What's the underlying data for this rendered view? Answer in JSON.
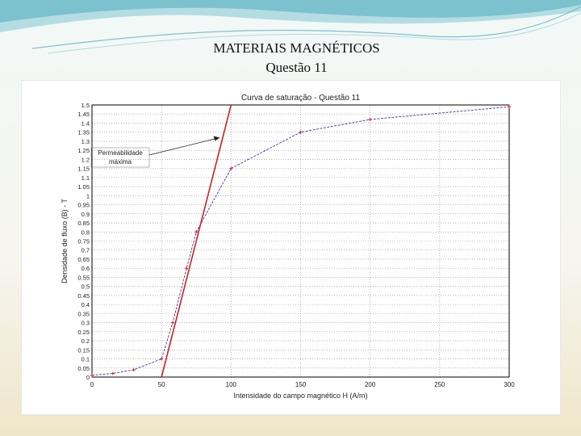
{
  "slide": {
    "title": "MATERIAIS MAGNÉTICOS",
    "subtitle": "Questão 11"
  },
  "colors": {
    "curve": "#3a3aa8",
    "permeability_line": "#cc2222",
    "grid": "#888888"
  },
  "chart_data": {
    "type": "line",
    "title": "Curva de saturação - Questão 11",
    "xlabel": "Intensidade do campo magnético H (A/m)",
    "ylabel": "Densidade de fluxo (B) - T",
    "xlim": [
      0,
      300
    ],
    "ylim": [
      0,
      1.5
    ],
    "grid": true,
    "x_ticks": [
      "0",
      "50",
      "100",
      "150",
      "200",
      "250",
      "300"
    ],
    "y_ticks": [
      "0",
      "0.05",
      "0.1",
      "0.15",
      "0.2",
      "0.25",
      "0.3",
      "0.35",
      "0.4",
      "0.45",
      "0.5",
      "0.55",
      "0.6",
      "0.65",
      "0.7",
      "0.75",
      "0.8",
      "0.85",
      "0.9",
      "0.95",
      "1",
      "1.05",
      "1.1",
      "1.15",
      "1.2",
      "1.25",
      "1.3",
      "1.35",
      "1.4",
      "1.45",
      "1.5"
    ],
    "series": [
      {
        "values_x": [
          0,
          15,
          30,
          50,
          58,
          68,
          75,
          100,
          150,
          200,
          300
        ],
        "values_y": [
          0.01,
          0.02,
          0.04,
          0.1,
          0.3,
          0.6,
          0.8,
          1.15,
          1.35,
          1.42,
          1.49
        ]
      },
      {
        "values_x": [
          50,
          100
        ],
        "values_y": [
          0,
          1.5
        ]
      }
    ],
    "annotation": {
      "lines": [
        "Permeabilidade",
        "máxima"
      ],
      "arrow_to": [
        92,
        1.32
      ]
    }
  }
}
